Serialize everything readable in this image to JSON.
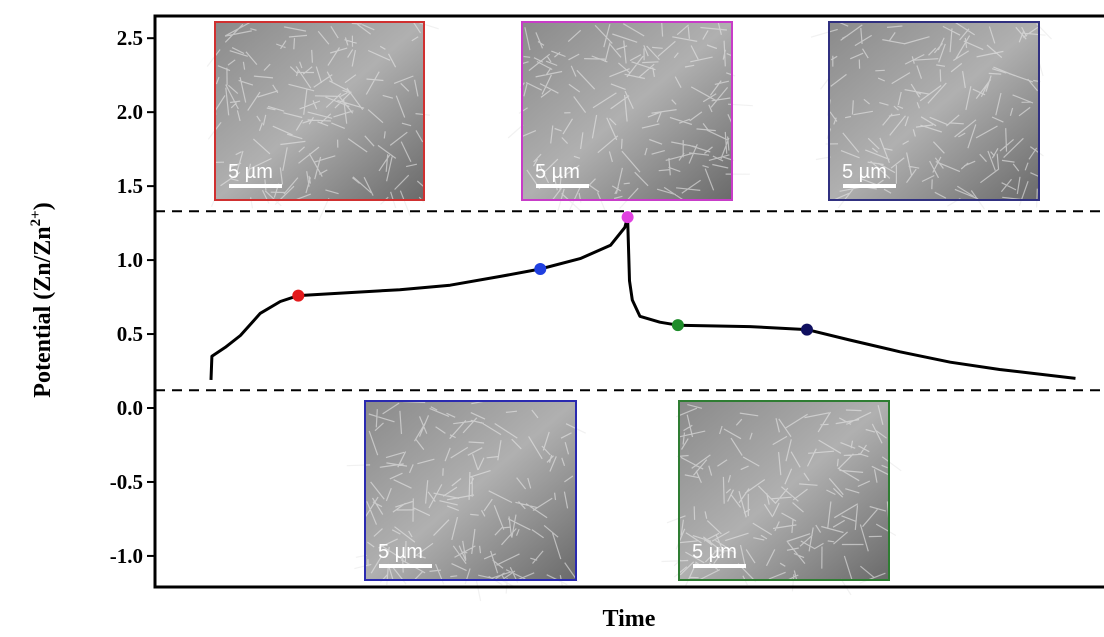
{
  "chart_data": {
    "type": "line",
    "x_label": "Time",
    "y_label_parts": [
      "Potential (Zn/Zn",
      "2+",
      ")"
    ],
    "xlim": [
      0,
      100
    ],
    "ylim": [
      -1.21,
      2.65
    ],
    "yticks": [
      {
        "value": -1,
        "label": "-1.0"
      },
      -0.5,
      {
        "value": 0,
        "label": "0.0"
      },
      0.5,
      {
        "value": 1,
        "label": "1.0"
      },
      1.5,
      {
        "value": 2,
        "label": "2.0"
      },
      2.5
    ],
    "hlines": [
      1.33,
      0.12
    ],
    "series": [
      {
        "color": "#000000",
        "x": [
          5.9,
          6.0,
          7.4,
          9.0,
          11.1,
          13.2,
          15.1,
          20.5,
          25.8,
          31.1,
          36.4,
          40.6,
          44.8,
          48.0,
          49.5,
          49.8,
          50.0,
          50.3,
          51.1,
          53.2,
          55.1,
          62.7,
          68.7,
          73.2,
          78.5,
          83.8,
          89.0,
          97.0
        ],
        "values": [
          0.19,
          0.35,
          0.41,
          0.49,
          0.64,
          0.72,
          0.76,
          0.78,
          0.8,
          0.83,
          0.89,
          0.94,
          1.01,
          1.1,
          1.22,
          1.29,
          0.86,
          0.73,
          0.62,
          0.58,
          0.56,
          0.55,
          0.53,
          0.46,
          0.38,
          0.31,
          0.26,
          0.2
        ]
      }
    ],
    "points": {
      "x": [
        15.1,
        40.6,
        49.8,
        55.1,
        68.7
      ],
      "values": [
        0.76,
        0.94,
        1.29,
        0.56,
        0.53
      ],
      "colors": [
        "#e31a1c",
        "#1f3fe0",
        "#e040e0",
        "#1e8c2a",
        "#101060"
      ]
    },
    "insets": [
      {
        "scale": "5 µm",
        "border": "#d03030"
      },
      {
        "scale": "5 µm",
        "border": "#c83cc8"
      },
      {
        "scale": "5 µm",
        "border": "#303080"
      },
      {
        "scale": "5 µm",
        "border": "#2a2ab0"
      },
      {
        "scale": "5 µm",
        "border": "#2e7d32"
      }
    ]
  }
}
